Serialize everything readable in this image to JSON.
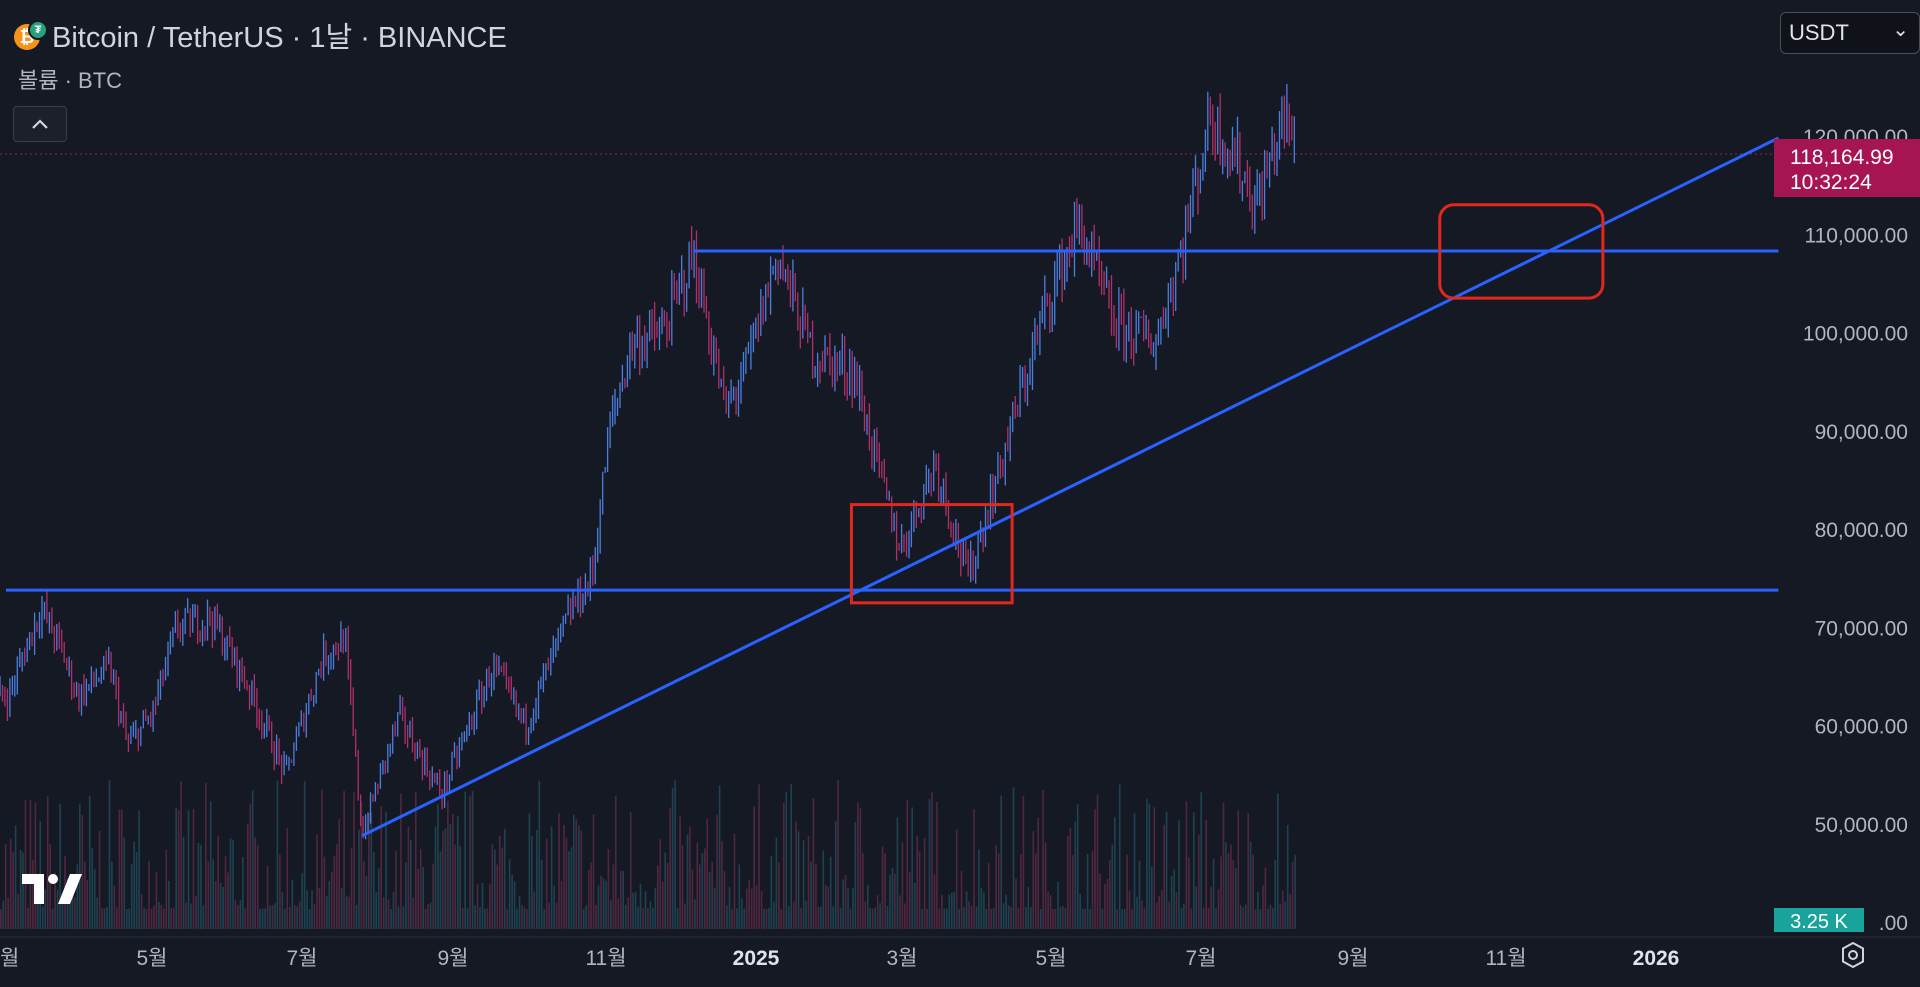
{
  "header": {
    "title": "Bitcoin / TetherUS · 1날 · BINANCE",
    "sub": "볼륨 · BTC",
    "collapse_glyph": "^"
  },
  "currency": {
    "label": "USDT",
    "chevron": "⌄"
  },
  "price_tag": {
    "price": "118,164.99",
    "countdown": "10:32:24"
  },
  "volume_tag": "3.25 K",
  "colors": {
    "background": "#151924",
    "line": "#2962ff",
    "box": "#e0281c",
    "candle_up": "#4a7fe0",
    "candle_down": "#b0306a",
    "price_tag_bg": "#a61452",
    "volume_tag_bg": "#1aa39a"
  },
  "icons": {
    "logo": "tradingview-logo-icon",
    "settings": "settings-icon",
    "coins": "btc-usdt-icon"
  },
  "chart_data": {
    "type": "candlestick",
    "y_axis": {
      "ticks": [
        "120,000.00",
        "110,000.00",
        "100,000.00",
        "90,000.00",
        "80,000.00",
        "70,000.00",
        "60,000.00",
        "50,000.00"
      ],
      "tick_values": [
        120000,
        110000,
        100000,
        90000,
        80000,
        70000,
        60000,
        50000
      ],
      "range": [
        40000,
        122500
      ],
      "partial_label": ".00"
    },
    "x_axis": {
      "ticks": [
        "월",
        "5월",
        "7월",
        "9월",
        "11월",
        "2025",
        "3월",
        "5월",
        "7월",
        "9월",
        "11월",
        "2026"
      ],
      "bold": [
        false,
        false,
        false,
        false,
        false,
        true,
        false,
        false,
        false,
        false,
        false,
        true
      ]
    },
    "price_path": [
      [
        "2024-03-15",
        63000
      ],
      [
        "2024-03-28",
        72000
      ],
      [
        "2024-04-05",
        68000
      ],
      [
        "2024-04-12",
        63000
      ],
      [
        "2024-04-25",
        66000
      ],
      [
        "2024-05-02",
        58000
      ],
      [
        "2024-05-12",
        61000
      ],
      [
        "2024-05-22",
        70000
      ],
      [
        "2024-06-05",
        71000
      ],
      [
        "2024-06-20",
        64000
      ],
      [
        "2024-07-05",
        55000
      ],
      [
        "2024-07-20",
        67000
      ],
      [
        "2024-07-29",
        69000
      ],
      [
        "2024-08-05",
        49000
      ],
      [
        "2024-08-20",
        61000
      ],
      [
        "2024-09-06",
        53000
      ],
      [
        "2024-09-27",
        66000
      ],
      [
        "2024-10-10",
        60000
      ],
      [
        "2024-10-29",
        72000
      ],
      [
        "2024-11-06",
        75000
      ],
      [
        "2024-11-13",
        90000
      ],
      [
        "2024-11-22",
        99000
      ],
      [
        "2024-12-05",
        100000
      ],
      [
        "2024-12-17",
        108000
      ],
      [
        "2024-12-30",
        92000
      ],
      [
        "2025-01-07",
        96000
      ],
      [
        "2025-01-20",
        108000
      ],
      [
        "2025-02-03",
        98000
      ],
      [
        "2025-02-20",
        96000
      ],
      [
        "2025-03-04",
        84000
      ],
      [
        "2025-03-11",
        78000
      ],
      [
        "2025-03-25",
        87000
      ],
      [
        "2025-04-07",
        75000
      ],
      [
        "2025-04-22",
        88000
      ],
      [
        "2025-05-09",
        103000
      ],
      [
        "2025-05-22",
        111000
      ],
      [
        "2025-06-05",
        101000
      ],
      [
        "2025-06-22",
        99000
      ],
      [
        "2025-07-03",
        109000
      ],
      [
        "2025-07-14",
        122000
      ],
      [
        "2025-07-24",
        118000
      ],
      [
        "2025-08-02",
        113000
      ],
      [
        "2025-08-13",
        122000
      ],
      [
        "2025-08-18",
        118165
      ]
    ],
    "drawings": {
      "horizontal_lines": [
        {
          "from": "2024-03-14",
          "to": "2026-03-01",
          "price": 73800
        },
        {
          "from": "2024-12-17",
          "to": "2026-03-01",
          "price": 108300
        }
      ],
      "trend_line": {
        "from": [
          "2024-08-05",
          48800
        ],
        "to": [
          "2026-03-01",
          119800
        ]
      },
      "rectangles": [
        {
          "from": "2025-02-19",
          "to": "2025-04-25",
          "price_top": 82500,
          "price_bottom": 72500
        },
        {
          "from": "2025-10-15",
          "to": "2025-12-20",
          "price_top": 113000,
          "price_bottom": 103500
        }
      ]
    },
    "last_price": 118164.99,
    "last_volume": "3.25 K"
  }
}
